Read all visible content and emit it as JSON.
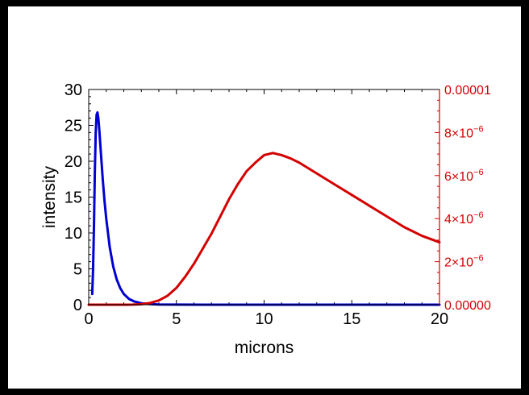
{
  "chart_data": {
    "type": "line",
    "xlabel": "microns",
    "ylabel": "intensity",
    "xlim": [
      0,
      20
    ],
    "ylim_left": [
      0,
      30
    ],
    "ylim_right": [
      0,
      1e-05
    ],
    "x_ticks": [
      "0",
      "5",
      "10",
      "15",
      "20"
    ],
    "y_left_ticks": [
      "0",
      "5",
      "10",
      "15",
      "20",
      "25",
      "30"
    ],
    "y_right_ticks": [
      {
        "mantissa": "0.00000",
        "exponent": ""
      },
      {
        "mantissa": "2×10",
        "exponent": "−6"
      },
      {
        "mantissa": "4×10",
        "exponent": "−6"
      },
      {
        "mantissa": "6×10",
        "exponent": "−6"
      },
      {
        "mantissa": "8×10",
        "exponent": "−6"
      },
      {
        "mantissa": "0.00001",
        "exponent": ""
      }
    ],
    "grid": false,
    "legend": "none",
    "series": [
      {
        "axis": "left",
        "color": "#0000d4",
        "x": [
          0.2,
          0.25,
          0.3,
          0.35,
          0.4,
          0.45,
          0.5,
          0.55,
          0.6,
          0.7,
          0.8,
          0.9,
          1.0,
          1.2,
          1.4,
          1.6,
          1.8,
          2.0,
          2.3,
          2.6,
          3.0,
          3.5,
          4.0,
          5.0,
          7.0,
          10.0,
          15.0,
          20.0
        ],
        "y": [
          1.5,
          5,
          11,
          18.5,
          24,
          26.5,
          26.8,
          26,
          24.5,
          21,
          17.5,
          14.5,
          12,
          8,
          5.3,
          3.5,
          2.3,
          1.5,
          0.8,
          0.45,
          0.2,
          0.08,
          0.03,
          0.01,
          0.0,
          0.0,
          0.0,
          0.0
        ]
      },
      {
        "axis": "right",
        "color": "#d40000",
        "x": [
          0,
          2.0,
          2.5,
          3.0,
          3.5,
          4.0,
          4.5,
          5.0,
          5.5,
          6.0,
          6.5,
          7.0,
          7.5,
          8.0,
          8.5,
          9.0,
          9.5,
          10.0,
          10.5,
          11.0,
          11.5,
          12.0,
          13.0,
          14.0,
          15.0,
          16.0,
          17.0,
          18.0,
          19.0,
          20.0
        ],
        "y": [
          0,
          0,
          4.8e-09,
          2.5e-08,
          8e-08,
          2e-07,
          4.2e-07,
          7.8e-07,
          1.3e-06,
          1.9e-06,
          2.6e-06,
          3.3e-06,
          4.1e-06,
          4.9e-06,
          5.6e-06,
          6.2e-06,
          6.6e-06,
          6.95e-06,
          7.05e-06,
          6.95e-06,
          6.8e-06,
          6.6e-06,
          6.1e-06,
          5.6e-06,
          5.1e-06,
          4.6e-06,
          4.1e-06,
          3.6e-06,
          3.2e-06,
          2.9e-06
        ]
      }
    ]
  }
}
